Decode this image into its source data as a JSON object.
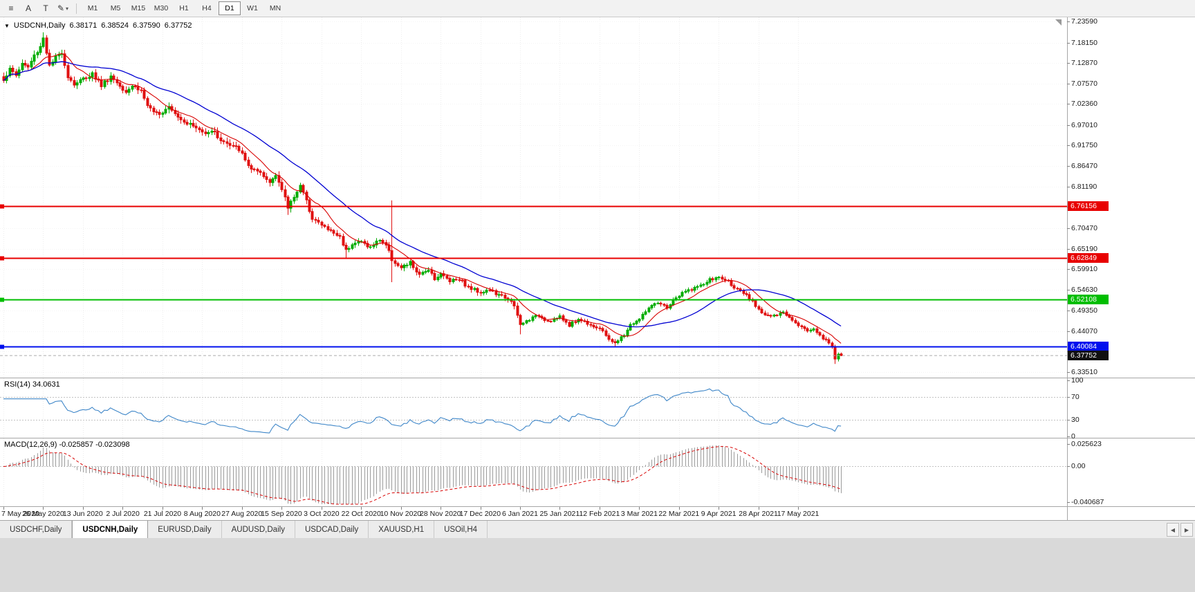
{
  "toolbar": {
    "tools": [
      {
        "name": "hamburger-menu",
        "glyph": "≡"
      },
      {
        "name": "cursor-tool",
        "glyph": "A"
      },
      {
        "name": "text-tool",
        "glyph": "T"
      },
      {
        "name": "draw-tool",
        "glyph": "✎"
      }
    ],
    "draw_caret": "▾",
    "timeframes": [
      "M1",
      "M5",
      "M15",
      "M30",
      "H1",
      "H4",
      "D1",
      "W1",
      "MN"
    ],
    "selected_timeframe": "D1"
  },
  "chart": {
    "collapse_marker": "▼",
    "symbol_label": "USDCNH,Daily",
    "ohlc": {
      "open": "6.38171",
      "high": "6.38524",
      "low": "6.37590",
      "close": "6.37752"
    }
  },
  "rsi_panel": {
    "label": "RSI(14) 34.0631",
    "levels": [
      70,
      30
    ],
    "axis_labels": [
      {
        "value": 100,
        "text": "100"
      },
      {
        "value": 70,
        "text": "70"
      },
      {
        "value": 30,
        "text": "30"
      },
      {
        "value": 0,
        "text": "0"
      }
    ]
  },
  "macd_panel": {
    "label": "MACD(12,26,9) -0.025857 -0.023098",
    "axis_labels": [
      {
        "value": 0.025623,
        "text": "0.025623"
      },
      {
        "value": 0,
        "text": "0.00"
      },
      {
        "value": -0.040687,
        "text": "-0.040687"
      }
    ]
  },
  "tabs": {
    "items": [
      {
        "label": "USDCHF,Daily",
        "selected": false
      },
      {
        "label": "USDCNH,Daily",
        "selected": true
      },
      {
        "label": "EURUSD,Daily",
        "selected": false
      },
      {
        "label": "AUDUSD,Daily",
        "selected": false
      },
      {
        "label": "USDCAD,Daily",
        "selected": false
      },
      {
        "label": "XAUUSD,H1",
        "selected": false
      },
      {
        "label": "USOil,H4",
        "selected": false
      }
    ],
    "scroll_left": "◀",
    "scroll_right": "▶"
  },
  "chart_data": {
    "type": "candlestick",
    "symbol": "USDCNH",
    "timeframe": "Daily",
    "title": "USDCNH, Daily",
    "ylim": [
      6.321,
      7.245
    ],
    "candle_count": 275,
    "price_axis_labels": [
      "7.23590",
      "7.18150",
      "7.12870",
      "7.07570",
      "7.02360",
      "6.97010",
      "6.91750",
      "6.86470",
      "6.81190",
      "6.75900",
      "6.70470",
      "6.65190",
      "6.59910",
      "6.54630",
      "6.49350",
      "6.44070",
      "6.38790",
      "6.33510"
    ],
    "date_labels": [
      "7 May 2020",
      "26 May 2020",
      "13 Jun 2020",
      "2 Jul 2020",
      "21 Jul 2020",
      "8 Aug 2020",
      "27 Aug 2020",
      "15 Sep 2020",
      "3 Oct 2020",
      "22 Oct 2020",
      "10 Nov 2020",
      "28 Nov 2020",
      "17 Dec 2020",
      "6 Jan 2021",
      "25 Jan 2021",
      "12 Feb 2021",
      "3 Mar 2021",
      "22 Mar 2021",
      "9 Apr 2021",
      "28 Apr 2021",
      "17 May 2021"
    ],
    "close_anchors": [
      [
        0,
        7.088
      ],
      [
        2,
        7.112
      ],
      [
        4,
        7.098
      ],
      [
        6,
        7.128
      ],
      [
        8,
        7.118
      ],
      [
        10,
        7.148
      ],
      [
        12,
        7.172
      ],
      [
        13,
        7.195
      ],
      [
        14,
        7.158
      ],
      [
        15,
        7.12
      ],
      [
        17,
        7.142
      ],
      [
        19,
        7.158
      ],
      [
        21,
        7.095
      ],
      [
        23,
        7.075
      ],
      [
        26,
        7.088
      ],
      [
        29,
        7.102
      ],
      [
        32,
        7.072
      ],
      [
        35,
        7.095
      ],
      [
        38,
        7.072
      ],
      [
        40,
        7.058
      ],
      [
        42,
        7.072
      ],
      [
        45,
        7.058
      ],
      [
        47,
        7.02
      ],
      [
        49,
        6.998
      ],
      [
        52,
        7.005
      ],
      [
        54,
        7.022
      ],
      [
        57,
        6.992
      ],
      [
        60,
        6.976
      ],
      [
        63,
        6.962
      ],
      [
        65,
        6.951
      ],
      [
        68,
        6.957
      ],
      [
        71,
        6.932
      ],
      [
        74,
        6.916
      ],
      [
        77,
        6.908
      ],
      [
        79,
        6.878
      ],
      [
        81,
        6.858
      ],
      [
        84,
        6.842
      ],
      [
        87,
        6.822
      ],
      [
        89,
        6.846
      ],
      [
        91,
        6.802
      ],
      [
        93,
        6.758
      ],
      [
        95,
        6.788
      ],
      [
        97,
        6.815
      ],
      [
        99,
        6.772
      ],
      [
        101,
        6.732
      ],
      [
        104,
        6.712
      ],
      [
        107,
        6.697
      ],
      [
        110,
        6.682
      ],
      [
        112,
        6.648
      ],
      [
        114,
        6.666
      ],
      [
        117,
        6.67
      ],
      [
        120,
        6.655
      ],
      [
        123,
        6.676
      ],
      [
        125,
        6.662
      ],
      [
        127,
        6.625
      ],
      [
        130,
        6.601
      ],
      [
        133,
        6.616
      ],
      [
        136,
        6.582
      ],
      [
        139,
        6.601
      ],
      [
        141,
        6.576
      ],
      [
        143,
        6.586
      ],
      [
        146,
        6.571
      ],
      [
        149,
        6.576
      ],
      [
        152,
        6.552
      ],
      [
        156,
        6.541
      ],
      [
        159,
        6.546
      ],
      [
        162,
        6.531
      ],
      [
        165,
        6.526
      ],
      [
        167,
        6.502
      ],
      [
        169,
        6.456
      ],
      [
        172,
        6.471
      ],
      [
        175,
        6.481
      ],
      [
        178,
        6.466
      ],
      [
        182,
        6.476
      ],
      [
        185,
        6.456
      ],
      [
        188,
        6.471
      ],
      [
        191,
        6.461
      ],
      [
        195,
        6.446
      ],
      [
        198,
        6.421
      ],
      [
        200,
        6.408
      ],
      [
        203,
        6.431
      ],
      [
        205,
        6.456
      ],
      [
        208,
        6.471
      ],
      [
        211,
        6.501
      ],
      [
        214,
        6.511
      ],
      [
        217,
        6.501
      ],
      [
        220,
        6.526
      ],
      [
        223,
        6.542
      ],
      [
        226,
        6.552
      ],
      [
        228,
        6.556
      ],
      [
        231,
        6.572
      ],
      [
        234,
        6.578
      ],
      [
        237,
        6.568
      ],
      [
        240,
        6.546
      ],
      [
        243,
        6.531
      ],
      [
        246,
        6.506
      ],
      [
        249,
        6.482
      ],
      [
        252,
        6.478
      ],
      [
        255,
        6.488
      ],
      [
        258,
        6.471
      ],
      [
        261,
        6.451
      ],
      [
        263,
        6.441
      ],
      [
        265,
        6.448
      ],
      [
        267,
        6.429
      ],
      [
        269,
        6.416
      ],
      [
        271,
        6.401
      ],
      [
        272,
        6.372
      ],
      [
        273,
        6.3815
      ],
      [
        274,
        6.37752
      ]
    ],
    "special_candles": [
      {
        "i": 13,
        "high": 7.208
      },
      {
        "i": 93,
        "low": 6.739
      },
      {
        "i": 112,
        "low": 6.629
      },
      {
        "i": 127,
        "high": 6.776,
        "low": 6.566
      },
      {
        "i": 169,
        "low": 6.432
      },
      {
        "i": 200,
        "low": 6.399
      },
      {
        "i": 272,
        "low": 6.3559
      },
      {
        "i": 274,
        "open": 6.38171,
        "high": 6.38524,
        "low": 6.3759,
        "close": 6.37752
      }
    ],
    "noise_amplitude": 0.005,
    "volatility_zones": [
      {
        "until": 100,
        "scale": 1.25
      },
      {
        "until": 170,
        "scale": 1.0
      },
      {
        "until": 275,
        "scale": 0.75
      }
    ],
    "seed": 1337,
    "ma_fast_period": 10,
    "ma_slow_period": 30,
    "rsi_period": 14,
    "macd_params": [
      12,
      26,
      9
    ],
    "rsi_current": "34.0631",
    "macd_current": [
      "-0.025857",
      "-0.023098"
    ],
    "hlines": [
      {
        "value": 6.76156,
        "label": "6.76156",
        "color": "#E80000"
      },
      {
        "value": 6.62849,
        "label": "6.62849",
        "color": "#E80000"
      },
      {
        "value": 6.52108,
        "label": "6.52108",
        "color": "#00BE00"
      },
      {
        "value": 6.40084,
        "label": "6.40084",
        "color": "#0010EE"
      }
    ],
    "current_price": {
      "value": 6.37752,
      "label": "6.37752",
      "color": "#101010"
    },
    "colors": {
      "up": "#00AC00",
      "down": "#E01010",
      "ma_fast": "#D80000",
      "ma_slow": "#0000D2",
      "rsi": "#3E86C8",
      "macd_hist": "#9B9B9B",
      "macd_signal": "#D80000",
      "grid": "#ededed",
      "grid_h": "#f4f4f4",
      "level_dotted": "#c2c2c2",
      "current_price_line": "#aaaaaa"
    }
  }
}
